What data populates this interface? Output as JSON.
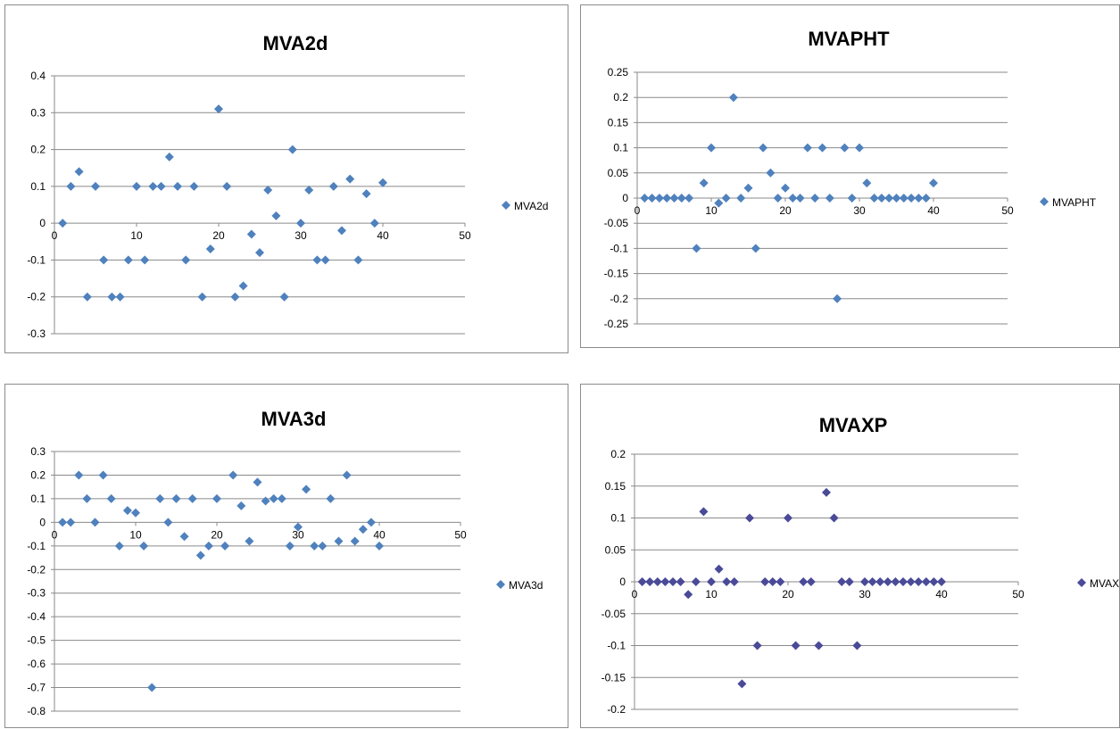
{
  "charts": [
    {
      "id": "mva2d",
      "title": "MVA2d",
      "legend": "MVA2d",
      "marker_color": "#4f81bd"
    },
    {
      "id": "mvapht",
      "title": "MVAPHT",
      "legend": "MVAPHT",
      "marker_color": "#4f81bd"
    },
    {
      "id": "mva3d",
      "title": "MVA3d",
      "legend": "MVA3d",
      "marker_color": "#4f81bd"
    },
    {
      "id": "mvaxp",
      "title": "MVAXP",
      "legend": "MVAXP",
      "marker_color": "#4a4a98"
    }
  ],
  "chart_data": [
    {
      "type": "scatter",
      "title": "MVA2d",
      "xlim": [
        0,
        50
      ],
      "ylim": [
        -0.3,
        0.4
      ],
      "xticks": [
        0,
        10,
        20,
        30,
        40,
        50
      ],
      "yticks": [
        0.4,
        0.3,
        0.2,
        0.1,
        0,
        -0.1,
        -0.2,
        -0.3
      ],
      "grid": true,
      "legend_position": "right",
      "series": [
        {
          "name": "MVA2d",
          "x": [
            1,
            2,
            3,
            4,
            5,
            6,
            7,
            8,
            9,
            10,
            11,
            12,
            13,
            14,
            15,
            16,
            17,
            18,
            19,
            20,
            21,
            22,
            23,
            24,
            25,
            26,
            27,
            28,
            29,
            30,
            31,
            32,
            33,
            34,
            35,
            36,
            37,
            38,
            39,
            40
          ],
          "y": [
            0,
            0.1,
            0.14,
            -0.2,
            0.1,
            -0.1,
            -0.2,
            -0.2,
            -0.1,
            0.1,
            -0.1,
            0.1,
            0.1,
            0.18,
            0.1,
            -0.1,
            0.1,
            -0.2,
            -0.07,
            0.31,
            0.1,
            -0.2,
            -0.17,
            -0.03,
            -0.08,
            0.09,
            0.02,
            -0.2,
            0.2,
            0,
            0.09,
            -0.1,
            -0.1,
            0.1,
            -0.02,
            0.12,
            -0.1,
            0.08,
            0,
            0.11
          ]
        }
      ]
    },
    {
      "type": "scatter",
      "title": "MVAPHT",
      "xlim": [
        0,
        50
      ],
      "ylim": [
        -0.25,
        0.25
      ],
      "xticks": [
        0,
        10,
        20,
        30,
        40,
        50
      ],
      "yticks": [
        0.25,
        0.2,
        0.15,
        0.1,
        0.05,
        0,
        -0.05,
        -0.1,
        -0.15,
        -0.2,
        -0.25
      ],
      "grid": true,
      "legend_position": "right",
      "series": [
        {
          "name": "MVAPHT",
          "x": [
            1,
            2,
            3,
            4,
            5,
            6,
            7,
            8,
            9,
            10,
            11,
            12,
            13,
            14,
            15,
            16,
            17,
            18,
            19,
            20,
            21,
            22,
            23,
            24,
            25,
            26,
            27,
            28,
            29,
            30,
            31,
            32,
            33,
            34,
            35,
            36,
            37,
            38,
            39,
            40
          ],
          "y": [
            0,
            0,
            0,
            0,
            0,
            0,
            0,
            -0.1,
            0.03,
            0.1,
            -0.01,
            0,
            0.2,
            0,
            0.02,
            -0.1,
            0.1,
            0.05,
            0,
            0.02,
            0,
            0,
            0.1,
            0,
            0.1,
            0,
            -0.2,
            0.1,
            0,
            0.1,
            0.03,
            0,
            0,
            0,
            0,
            0,
            0,
            0,
            0,
            0.03
          ]
        }
      ]
    },
    {
      "type": "scatter",
      "title": "MVA3d",
      "xlim": [
        0,
        50
      ],
      "ylim": [
        -0.8,
        0.3
      ],
      "xticks": [
        0,
        10,
        20,
        30,
        40,
        50
      ],
      "yticks": [
        0.3,
        0.2,
        0.1,
        0,
        -0.1,
        -0.2,
        -0.3,
        -0.4,
        -0.5,
        -0.6,
        -0.7,
        -0.8
      ],
      "grid": true,
      "legend_position": "right",
      "series": [
        {
          "name": "MVA3d",
          "x": [
            1,
            2,
            3,
            4,
            5,
            6,
            7,
            8,
            9,
            10,
            11,
            12,
            13,
            14,
            15,
            16,
            17,
            18,
            19,
            20,
            21,
            22,
            23,
            24,
            25,
            26,
            27,
            28,
            29,
            30,
            31,
            32,
            33,
            34,
            35,
            36,
            37,
            38,
            39,
            40
          ],
          "y": [
            0,
            0,
            0.2,
            0.1,
            0,
            0.2,
            0.1,
            -0.1,
            0.05,
            0.04,
            -0.1,
            -0.7,
            0.1,
            0,
            0.1,
            -0.06,
            0.1,
            -0.14,
            -0.1,
            0.1,
            -0.1,
            0.2,
            0.07,
            -0.08,
            0.17,
            0.09,
            0.1,
            0.1,
            -0.1,
            -0.02,
            0.14,
            -0.1,
            -0.1,
            0.1,
            -0.08,
            0.2,
            -0.08,
            -0.03,
            0,
            -0.1
          ]
        }
      ]
    },
    {
      "type": "scatter",
      "title": "MVAXP",
      "xlim": [
        0,
        50
      ],
      "ylim": [
        -0.2,
        0.2
      ],
      "xticks": [
        0,
        10,
        20,
        30,
        40,
        50
      ],
      "yticks": [
        0.2,
        0.15,
        0.1,
        0.05,
        0,
        -0.05,
        -0.1,
        -0.15,
        -0.2
      ],
      "grid": true,
      "legend_position": "right",
      "series": [
        {
          "name": "MVAXP",
          "x": [
            1,
            2,
            3,
            4,
            5,
            6,
            7,
            8,
            9,
            10,
            11,
            12,
            13,
            14,
            15,
            16,
            17,
            18,
            19,
            20,
            21,
            22,
            23,
            24,
            25,
            26,
            27,
            28,
            29,
            30,
            31,
            32,
            33,
            34,
            35,
            36,
            37,
            38,
            39,
            40
          ],
          "y": [
            0,
            0,
            0,
            0,
            0,
            0,
            -0.02,
            0,
            0.11,
            0,
            0.02,
            0,
            0,
            -0.16,
            0.1,
            -0.1,
            0,
            0,
            0,
            0.1,
            -0.1,
            0,
            0,
            -0.1,
            0.14,
            0.1,
            0,
            0,
            -0.1,
            0,
            0,
            0,
            0,
            0,
            0,
            0,
            0,
            0,
            0,
            0
          ]
        }
      ]
    }
  ]
}
